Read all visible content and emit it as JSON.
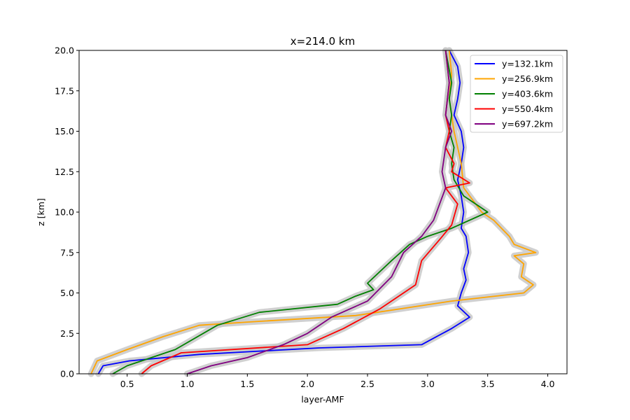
{
  "chart_data": {
    "type": "line",
    "title": "x=214.0 km",
    "xlabel": "layer-AMF",
    "ylabel": "z [km]",
    "xlim": [
      0.1,
      4.16
    ],
    "ylim": [
      0,
      20
    ],
    "xticks": [
      0.5,
      1.0,
      1.5,
      2.0,
      2.5,
      3.0,
      3.5,
      4.0
    ],
    "xtick_labels": [
      "0.5",
      "1.0",
      "1.5",
      "2.0",
      "2.5",
      "3.0",
      "3.5",
      "4.0"
    ],
    "yticks": [
      0,
      2.5,
      5,
      7.5,
      10,
      12.5,
      15,
      17.5,
      20
    ],
    "ytick_labels": [
      "0.0",
      "2.5",
      "5.0",
      "7.5",
      "10.0",
      "12.5",
      "15.0",
      "17.5",
      "20.0"
    ],
    "grid": false,
    "legend_position": "top-right",
    "uncertainty_band_color": "#c8c8c8",
    "series": [
      {
        "name": "y=132.1km",
        "color": "#0000ff",
        "x": [
          0.26,
          0.3,
          0.52,
          1.1,
          2.1,
          2.95,
          3.05,
          3.2,
          3.35,
          3.25,
          3.28,
          3.32,
          3.3,
          3.34,
          3.32,
          3.28,
          3.3,
          3.28,
          3.25,
          3.28,
          3.3,
          3.28,
          3.22,
          3.25,
          3.27,
          3.25,
          3.18
        ],
        "y": [
          0,
          0.5,
          0.8,
          1.2,
          1.6,
          1.8,
          2.2,
          2.8,
          3.5,
          4.2,
          5.0,
          5.8,
          6.5,
          7.5,
          8.5,
          9.0,
          10.0,
          11.0,
          12.0,
          13.0,
          14.0,
          15.0,
          16.0,
          17.0,
          18.0,
          19.0,
          20.0
        ]
      },
      {
        "name": "y=256.9km",
        "color": "#ffa500",
        "x": [
          0.2,
          0.25,
          0.5,
          0.8,
          1.1,
          1.5,
          2.4,
          3.2,
          3.8,
          3.88,
          3.78,
          3.8,
          3.72,
          3.9,
          3.72,
          3.68,
          3.55,
          3.45,
          3.3,
          3.28,
          3.25,
          3.22,
          3.2,
          3.18,
          3.2,
          3.18
        ],
        "y": [
          0,
          0.8,
          1.5,
          2.3,
          3.0,
          3.2,
          3.6,
          4.5,
          5.0,
          5.5,
          6.0,
          6.8,
          7.3,
          7.5,
          8.0,
          8.5,
          9.5,
          10.0,
          11.5,
          13.0,
          14.0,
          15.0,
          16.0,
          17.0,
          18.5,
          20.0
        ]
      },
      {
        "name": "y=403.6km",
        "color": "#008000",
        "x": [
          0.38,
          0.5,
          0.9,
          1.25,
          1.6,
          2.25,
          2.4,
          2.55,
          2.5,
          2.7,
          2.85,
          3.0,
          3.2,
          3.5,
          3.3,
          3.22,
          3.2,
          3.22,
          3.18,
          3.2,
          3.18,
          3.2,
          3.15
        ],
        "y": [
          0,
          0.5,
          1.5,
          3.0,
          3.8,
          4.3,
          4.8,
          5.2,
          5.6,
          7.0,
          8.0,
          8.5,
          9.0,
          10.0,
          11.0,
          12.0,
          13.0,
          14.0,
          15.0,
          16.0,
          17.0,
          18.0,
          20.0
        ]
      },
      {
        "name": "y=550.4km",
        "color": "#ff0000",
        "x": [
          0.62,
          0.7,
          0.95,
          2.0,
          2.3,
          2.6,
          2.9,
          2.95,
          3.1,
          3.2,
          3.25,
          3.15,
          3.35,
          3.2,
          3.22,
          3.15,
          3.18,
          3.15,
          3.18,
          3.15
        ],
        "y": [
          0,
          0.5,
          1.3,
          1.8,
          2.8,
          4.0,
          5.5,
          7.0,
          8.3,
          9.2,
          10.5,
          11.5,
          11.8,
          12.5,
          13.0,
          14.0,
          15.0,
          16.0,
          18.0,
          20.0
        ]
      },
      {
        "name": "y=697.2km",
        "color": "#800080",
        "x": [
          1.0,
          1.2,
          1.5,
          1.8,
          2.0,
          2.2,
          2.5,
          2.7,
          2.8,
          2.95,
          3.05,
          3.1,
          3.15,
          3.12,
          3.15,
          3.2,
          3.15,
          3.18,
          3.15
        ],
        "y": [
          0,
          0.5,
          1.0,
          1.8,
          2.5,
          3.5,
          4.5,
          6.0,
          7.5,
          8.5,
          9.5,
          10.5,
          11.5,
          12.5,
          14.0,
          15.0,
          16.0,
          18.0,
          20.0
        ]
      }
    ]
  }
}
